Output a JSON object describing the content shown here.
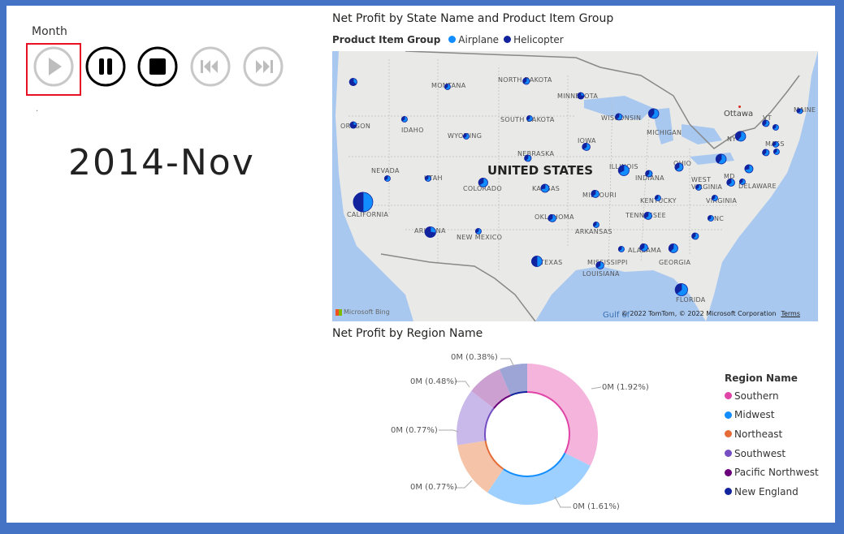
{
  "play_axis": {
    "field_label": "Month",
    "current_value": "2014-Nov",
    "dot": "·",
    "buttons": [
      {
        "name": "play-button",
        "icon": "play-icon",
        "state": "disabled"
      },
      {
        "name": "pause-button",
        "icon": "pause-icon",
        "state": "enabled"
      },
      {
        "name": "stop-button",
        "icon": "stop-icon",
        "state": "enabled"
      },
      {
        "name": "previous-button",
        "icon": "skip-back-icon",
        "state": "disabled"
      },
      {
        "name": "next-button",
        "icon": "skip-forward-icon",
        "state": "disabled"
      }
    ]
  },
  "map_visual": {
    "title": "Net Profit by State Name and Product Item Group",
    "legend_title": "Product Item Group",
    "legend_items": [
      {
        "label": "Airplane",
        "color": "#118dff"
      },
      {
        "label": "Helicopter",
        "color": "#12239e"
      }
    ],
    "country_label": "UNITED STATES",
    "city_label": "Ottawa",
    "gulf_label": "Gulf of",
    "copyright": "© 2022 TomTom, © 2022 Microsoft Corporation",
    "terms": "Terms",
    "bing": "Microsoft Bing",
    "state_labels": [
      "MONTANA",
      "NORTH DAKOTA",
      "MINNESOTA",
      "OREGON",
      "IDAHO",
      "SOUTH DAKOTA",
      "WISCONSIN",
      "MICHIGAN",
      "WYOMING",
      "IOWA",
      "NEBRASKA",
      "NEVADA",
      "UTAH",
      "COLORADO",
      "KANSAS",
      "ILLINOIS",
      "INDIANA",
      "OHIO",
      "WEST VIRGINIA",
      "CALIFORNIA",
      "MISSOURI",
      "KENTUCKY",
      "VIRGINIA",
      "OKLAHOMA",
      "TENNESSEE",
      "ARIZONA",
      "NEW MEXICO",
      "ARKANSAS",
      "ALABAMA",
      "GEORGIA",
      "TEXAS",
      "MISSISSIPPI",
      "LOUISIANA",
      "FLORIDA",
      "DELAWARE",
      "VT",
      "MAINE",
      "NY",
      "MASS",
      "MD",
      "NC"
    ]
  },
  "donut_visual": {
    "title": "Net Profit by Region Name",
    "legend_title": "Region Name",
    "slices": [
      {
        "name": "Southern",
        "label": "0M (1.92%)",
        "color": "#e66c37",
        "fill": "#f5b4dc",
        "stroke": "#e044a7",
        "pct": 1.92
      },
      {
        "name": "Midwest",
        "label": "0M (1.61%)",
        "color": "#118dff",
        "fill": "#9ed0ff",
        "stroke": "#118dff",
        "pct": 1.61
      },
      {
        "name": "Northeast",
        "label": "0M (0.77%)",
        "color": "#e66c37",
        "fill": "#f4c3a8",
        "stroke": "#e66c37",
        "pct": 0.77
      },
      {
        "name": "Southwest",
        "label": "0M (0.77%)",
        "color": "#744ec2",
        "fill": "#c9b9ea",
        "stroke": "#744ec2",
        "pct": 0.77
      },
      {
        "name": "Pacific Northwest",
        "label": "0M (0.48%)",
        "color": "#6b007b",
        "fill": "#cca0d0",
        "stroke": "#6b007b",
        "pct": 0.48
      },
      {
        "name": "New England",
        "label": "0M (0.38%)",
        "color": "#12239e",
        "fill": "#9da5d6",
        "stroke": "#12239e",
        "pct": 0.38
      }
    ],
    "legend_colors": [
      "#e044a7",
      "#118dff",
      "#e66c37",
      "#744ec2",
      "#6b007b",
      "#12239e"
    ]
  }
}
